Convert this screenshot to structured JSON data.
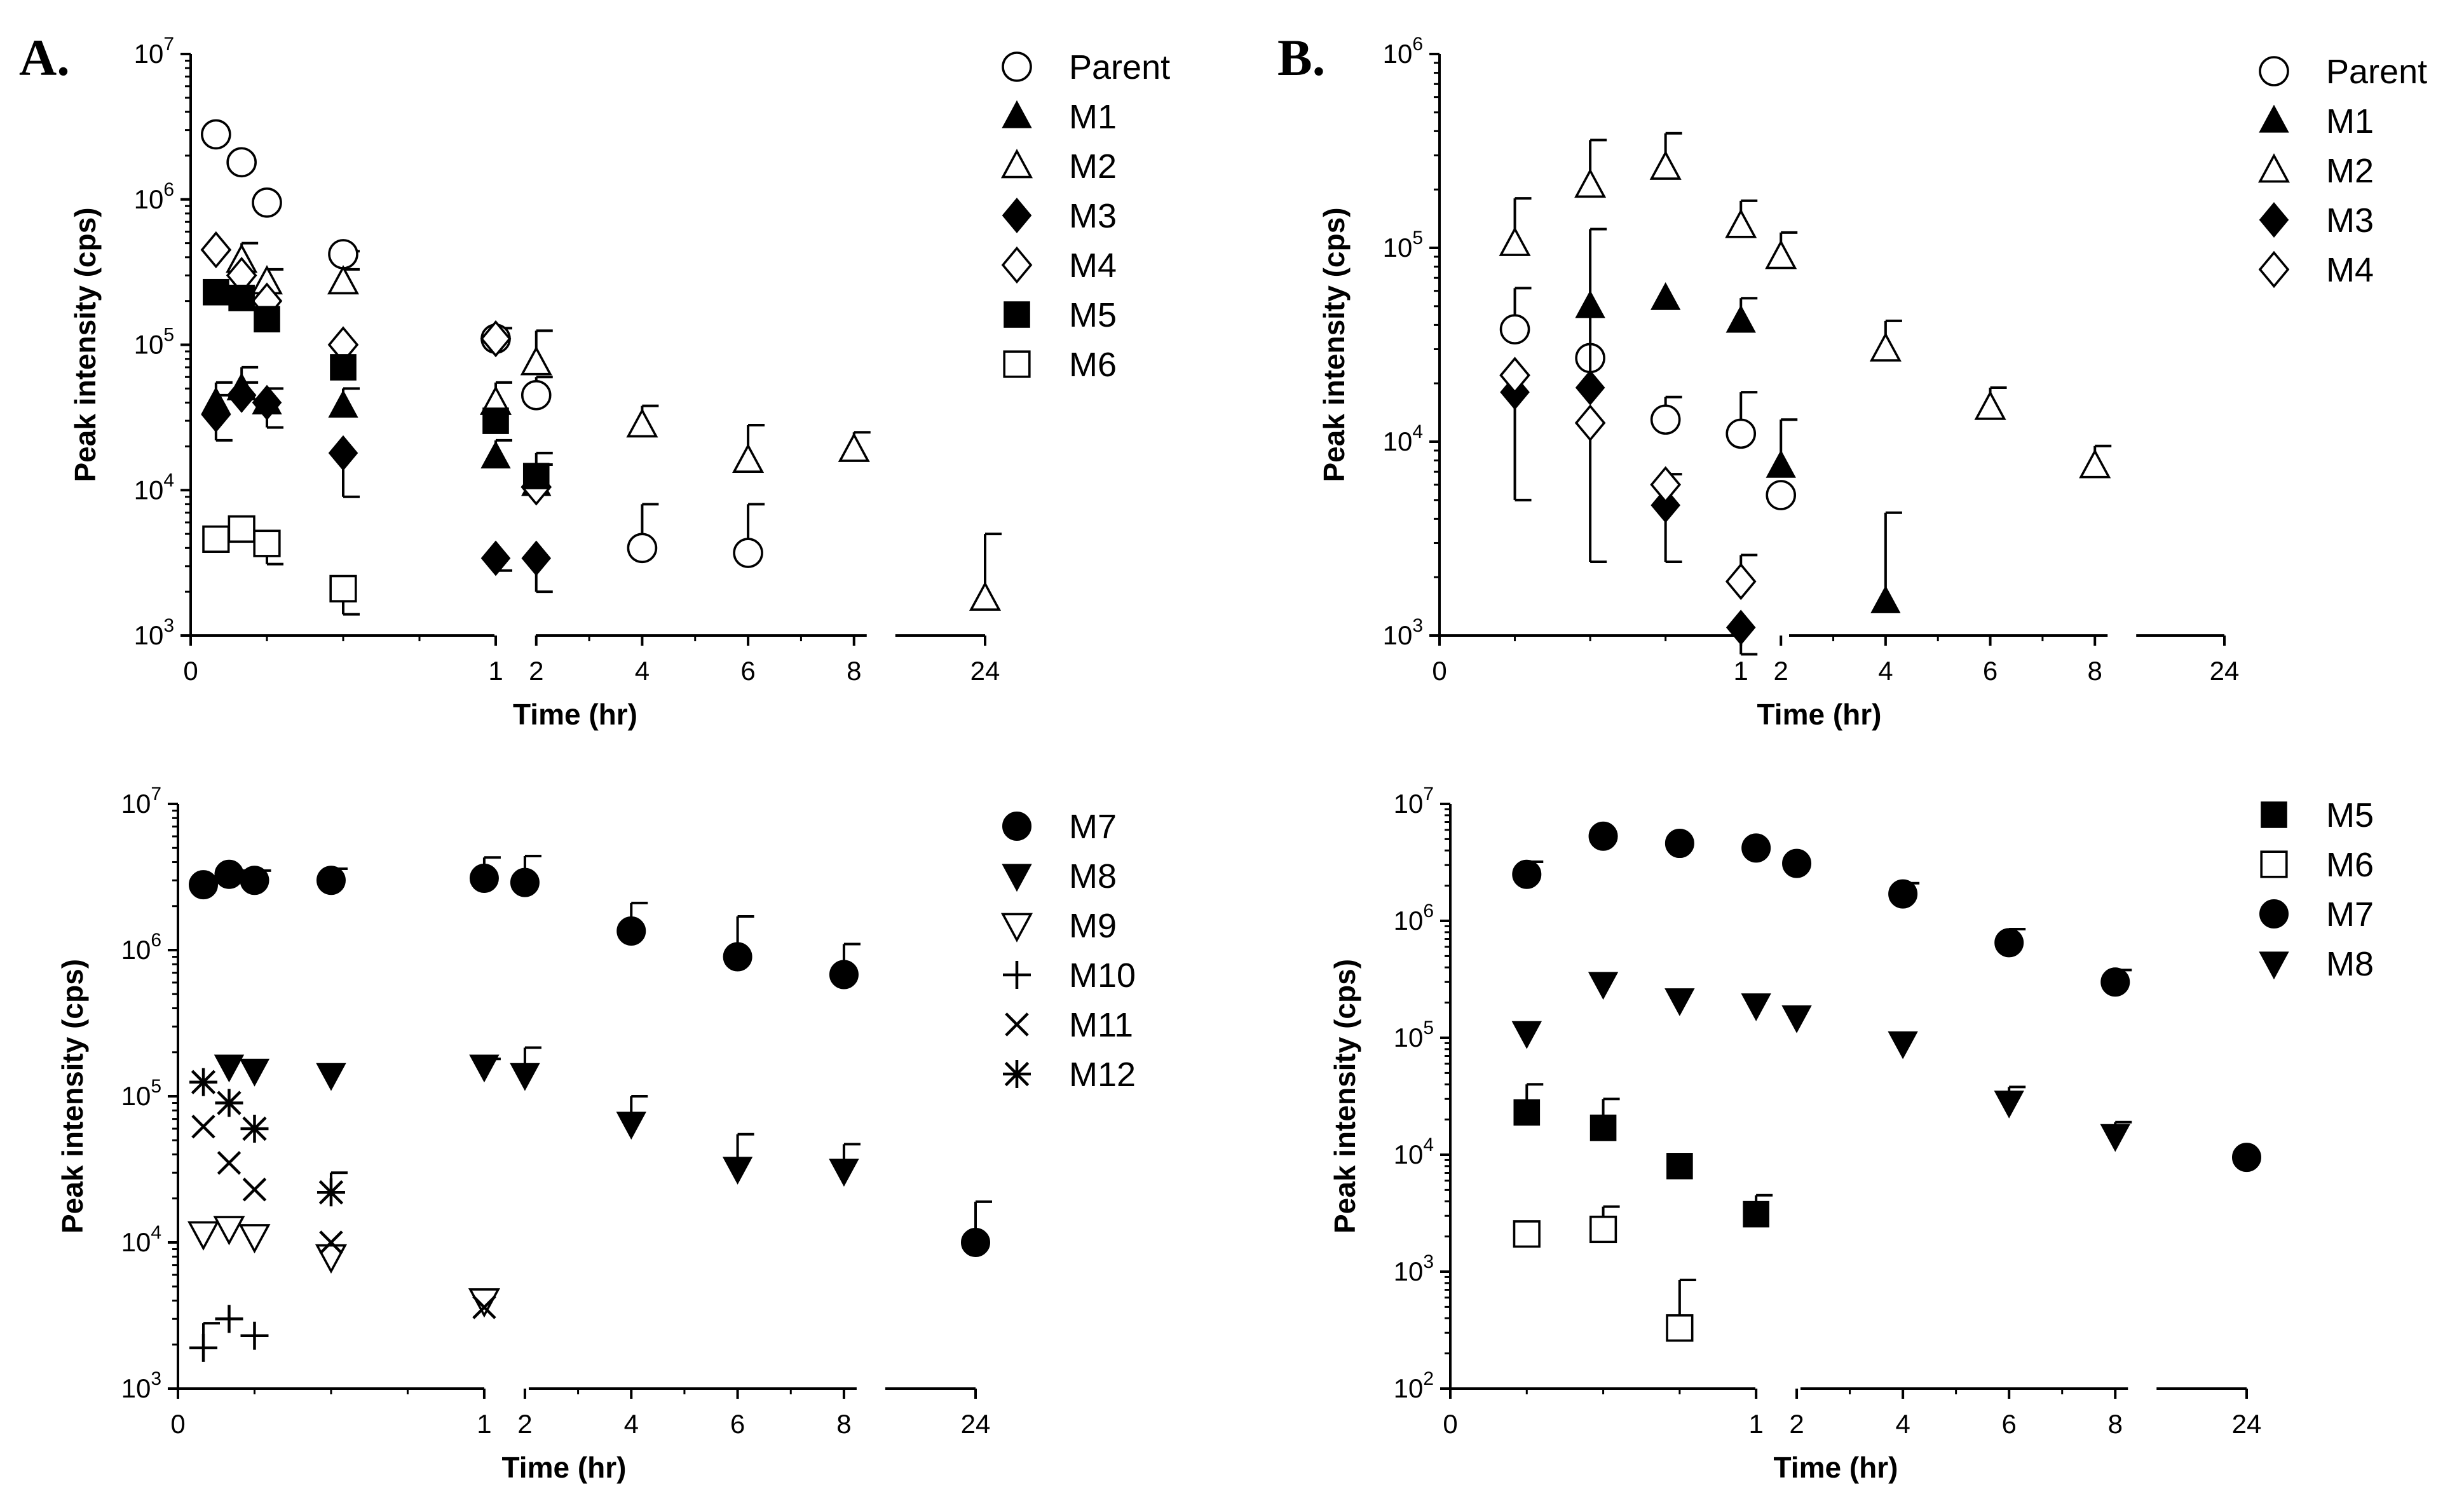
{
  "figure": {
    "panel_a": "A.",
    "panel_b": "B."
  },
  "chart_data": [
    {
      "id": "a-top",
      "type": "scatter",
      "xlabel": "Time (hr)",
      "ylabel": "Peak intensity (cps)",
      "yscale": "log",
      "ylim_exp": [
        3,
        7
      ],
      "y_base": "10",
      "x_ticks": [
        "0",
        "1",
        "2",
        "4",
        "6",
        "8",
        "24"
      ],
      "series": [
        {
          "name": "Parent",
          "marker": "circle-open",
          "points": [
            {
              "x": 0.083,
              "y": 2800000
            },
            {
              "x": 0.167,
              "y": 1800000
            },
            {
              "x": 0.25,
              "y": 950000
            },
            {
              "x": 0.5,
              "y": 420000,
              "err": 440000
            },
            {
              "x": 1,
              "y": 110000,
              "err": 130000
            },
            {
              "x": 2,
              "y": 45000,
              "err": 60000
            },
            {
              "x": 4,
              "y": 4000,
              "err": 8000
            },
            {
              "x": 6,
              "y": 3700,
              "err": 8000
            }
          ]
        },
        {
          "name": "M1",
          "marker": "triangle-filled",
          "points": [
            {
              "x": 0.083,
              "y": 40000,
              "err": 55000
            },
            {
              "x": 0.167,
              "y": 50000,
              "err": 70000
            },
            {
              "x": 0.25,
              "y": 40000,
              "err": 50000
            },
            {
              "x": 0.5,
              "y": 38000,
              "err": 50000
            },
            {
              "x": 1,
              "y": 17000,
              "err": 22000
            },
            {
              "x": 2,
              "y": 11000,
              "err": 15000
            }
          ]
        },
        {
          "name": "M2",
          "marker": "triangle-open",
          "points": [
            {
              "x": 0.167,
              "y": 380000,
              "err": 500000
            },
            {
              "x": 0.25,
              "y": 270000,
              "err": 330000
            },
            {
              "x": 0.5,
              "y": 270000,
              "err": 330000
            },
            {
              "x": 1,
              "y": 40000,
              "err": 55000
            },
            {
              "x": 2,
              "y": 75000,
              "err": 125000
            },
            {
              "x": 4,
              "y": 28000,
              "err": 38000
            },
            {
              "x": 6,
              "y": 16000,
              "err": 28000
            },
            {
              "x": 8,
              "y": 19000,
              "err": 25000
            },
            {
              "x": 24,
              "y": 1800,
              "err": 5000
            }
          ]
        },
        {
          "name": "M3",
          "marker": "diamond-filled",
          "points": [
            {
              "x": 0.083,
              "y": 33000,
              "err": 45000,
              "err_low": 22000
            },
            {
              "x": 0.167,
              "y": 45000,
              "err": 55000
            },
            {
              "x": 0.25,
              "y": 40000,
              "err_low": 27000
            },
            {
              "x": 0.5,
              "y": 18000,
              "err_low": 9000
            },
            {
              "x": 1,
              "y": 3400,
              "err_low": 2800
            },
            {
              "x": 2,
              "y": 3400,
              "err_low": 2000
            }
          ]
        },
        {
          "name": "M4",
          "marker": "diamond-open",
          "points": [
            {
              "x": 0.083,
              "y": 450000
            },
            {
              "x": 0.167,
              "y": 300000
            },
            {
              "x": 0.25,
              "y": 200000
            },
            {
              "x": 0.5,
              "y": 100000
            },
            {
              "x": 1,
              "y": 110000
            },
            {
              "x": 2,
              "y": 10500
            }
          ]
        },
        {
          "name": "M5",
          "marker": "square-filled",
          "points": [
            {
              "x": 0.083,
              "y": 230000
            },
            {
              "x": 0.167,
              "y": 210000
            },
            {
              "x": 0.25,
              "y": 150000
            },
            {
              "x": 0.5,
              "y": 70000
            },
            {
              "x": 1,
              "y": 30000
            },
            {
              "x": 2,
              "y": 12500,
              "err": 18000
            }
          ]
        },
        {
          "name": "M6",
          "marker": "square-open",
          "points": [
            {
              "x": 0.083,
              "y": 4600
            },
            {
              "x": 0.167,
              "y": 5400
            },
            {
              "x": 0.25,
              "y": 4300,
              "err_low": 3100
            },
            {
              "x": 0.5,
              "y": 2100,
              "err_low": 1400
            }
          ]
        }
      ]
    },
    {
      "id": "b-top",
      "type": "scatter",
      "xlabel": "Time (hr)",
      "ylabel": "Peak intensity (cps)",
      "yscale": "log",
      "ylim_exp": [
        3,
        6
      ],
      "y_base": "10",
      "x_ticks": [
        "0",
        "1",
        "2",
        "4",
        "6",
        "8",
        "24"
      ],
      "series": [
        {
          "name": "Parent",
          "marker": "circle-open",
          "points": [
            {
              "x": 0.25,
              "y": 38000,
              "err": 62000
            },
            {
              "x": 0.5,
              "y": 27000
            },
            {
              "x": 0.75,
              "y": 13000,
              "err": 17000
            },
            {
              "x": 1,
              "y": 11000,
              "err": 18000
            },
            {
              "x": 2,
              "y": 5300
            }
          ]
        },
        {
          "name": "M1",
          "marker": "triangle-filled",
          "points": [
            {
              "x": 0.5,
              "y": 50000
            },
            {
              "x": 0.75,
              "y": 55000
            },
            {
              "x": 1,
              "y": 42000,
              "err": 55000
            },
            {
              "x": 2,
              "y": 7500,
              "err": 13000
            },
            {
              "x": 4,
              "y": 1500,
              "err": 4300
            }
          ]
        },
        {
          "name": "M2",
          "marker": "triangle-open",
          "points": [
            {
              "x": 0.25,
              "y": 105000,
              "err": 180000
            },
            {
              "x": 0.5,
              "y": 210000,
              "err": 360000
            },
            {
              "x": 0.75,
              "y": 260000,
              "err": 390000
            },
            {
              "x": 1,
              "y": 130000,
              "err": 175000
            },
            {
              "x": 2,
              "y": 90000,
              "err": 120000
            },
            {
              "x": 4,
              "y": 30000,
              "err": 42000
            },
            {
              "x": 6,
              "y": 15000,
              "err": 19000
            },
            {
              "x": 8,
              "y": 7500,
              "err": 9500
            }
          ]
        },
        {
          "name": "M3",
          "marker": "diamond-filled",
          "points": [
            {
              "x": 0.25,
              "y": 18000,
              "err_low": 5000
            },
            {
              "x": 0.5,
              "y": 19000,
              "err": 125000
            },
            {
              "x": 0.75,
              "y": 4700,
              "err_low": 2400
            },
            {
              "x": 1,
              "y": 1100,
              "err_low": 800
            }
          ]
        },
        {
          "name": "M4",
          "marker": "diamond-open",
          "points": [
            {
              "x": 0.25,
              "y": 22000
            },
            {
              "x": 0.5,
              "y": 12500,
              "err_low": 2400
            },
            {
              "x": 0.75,
              "y": 6000,
              "err": 6800
            },
            {
              "x": 1,
              "y": 1900,
              "err": 2600
            }
          ]
        }
      ]
    },
    {
      "id": "a-bottom",
      "type": "scatter",
      "xlabel": "Time (hr)",
      "ylabel": "Peak intensity (cps)",
      "yscale": "log",
      "ylim_exp": [
        3,
        7
      ],
      "y_base": "10",
      "x_ticks": [
        "0",
        "1",
        "2",
        "4",
        "6",
        "8",
        "24"
      ],
      "series": [
        {
          "name": "M7",
          "marker": "circle-filled",
          "points": [
            {
              "x": 0.083,
              "y": 2800000
            },
            {
              "x": 0.167,
              "y": 3300000,
              "err": 3500000
            },
            {
              "x": 0.25,
              "y": 3000000,
              "err": 3500000
            },
            {
              "x": 0.5,
              "y": 3000000,
              "err": 3600000
            },
            {
              "x": 1,
              "y": 3100000,
              "err": 4300000
            },
            {
              "x": 2,
              "y": 2900000,
              "err": 4400000
            },
            {
              "x": 4,
              "y": 1350000,
              "err": 2100000
            },
            {
              "x": 6,
              "y": 900000,
              "err": 1700000
            },
            {
              "x": 8,
              "y": 680000,
              "err": 1100000
            },
            {
              "x": 24,
              "y": 10000,
              "err": 19000
            }
          ]
        },
        {
          "name": "M8",
          "marker": "triangle-down-filled",
          "points": [
            {
              "x": 0.167,
              "y": 160000
            },
            {
              "x": 0.25,
              "y": 150000
            },
            {
              "x": 0.5,
              "y": 140000
            },
            {
              "x": 1,
              "y": 160000,
              "err": 180000
            },
            {
              "x": 2,
              "y": 140000,
              "err": 215000
            },
            {
              "x": 4,
              "y": 65000,
              "err": 100000
            },
            {
              "x": 6,
              "y": 32000,
              "err": 55000
            },
            {
              "x": 8,
              "y": 31000,
              "err": 47000
            }
          ]
        },
        {
          "name": "M9",
          "marker": "triangle-down-open",
          "points": [
            {
              "x": 0.083,
              "y": 11500
            },
            {
              "x": 0.167,
              "y": 12500
            },
            {
              "x": 0.25,
              "y": 11000
            },
            {
              "x": 0.5,
              "y": 8000
            },
            {
              "x": 1,
              "y": 4000
            }
          ]
        },
        {
          "name": "M10",
          "marker": "plus",
          "points": [
            {
              "x": 0.083,
              "y": 1900,
              "err": 2800
            },
            {
              "x": 0.167,
              "y": 3000
            },
            {
              "x": 0.25,
              "y": 2300
            }
          ]
        },
        {
          "name": "M11",
          "marker": "cross",
          "points": [
            {
              "x": 0.083,
              "y": 62000
            },
            {
              "x": 0.167,
              "y": 35000
            },
            {
              "x": 0.25,
              "y": 23000
            },
            {
              "x": 0.5,
              "y": 10000
            },
            {
              "x": 1,
              "y": 3600
            }
          ]
        },
        {
          "name": "M12",
          "marker": "asterisk",
          "points": [
            {
              "x": 0.083,
              "y": 125000
            },
            {
              "x": 0.167,
              "y": 90000
            },
            {
              "x": 0.25,
              "y": 60000
            },
            {
              "x": 0.5,
              "y": 22000,
              "err": 30000
            }
          ]
        }
      ]
    },
    {
      "id": "b-bottom",
      "type": "scatter",
      "xlabel": "Time (hr)",
      "ylabel": "Peak intensity (cps)",
      "yscale": "log",
      "ylim_exp": [
        2,
        7
      ],
      "y_base": "10",
      "x_ticks": [
        "0",
        "1",
        "2",
        "4",
        "6",
        "8",
        "24"
      ],
      "series": [
        {
          "name": "M5",
          "marker": "square-filled",
          "points": [
            {
              "x": 0.25,
              "y": 23000,
              "err": 40000
            },
            {
              "x": 0.5,
              "y": 17000,
              "err": 30000
            },
            {
              "x": 0.75,
              "y": 8000
            },
            {
              "x": 1,
              "y": 3100,
              "err": 4500
            }
          ]
        },
        {
          "name": "M6",
          "marker": "square-open",
          "points": [
            {
              "x": 0.25,
              "y": 2100
            },
            {
              "x": 0.5,
              "y": 2300,
              "err": 3600
            },
            {
              "x": 0.75,
              "y": 330,
              "err": 850
            }
          ]
        },
        {
          "name": "M7",
          "marker": "circle-filled",
          "points": [
            {
              "x": 0.25,
              "y": 2500000,
              "err": 3200000
            },
            {
              "x": 0.5,
              "y": 5300000
            },
            {
              "x": 0.75,
              "y": 4600000
            },
            {
              "x": 1,
              "y": 4200000
            },
            {
              "x": 2,
              "y": 3100000
            },
            {
              "x": 4,
              "y": 1700000,
              "err": 2100000
            },
            {
              "x": 6,
              "y": 650000,
              "err": 850000
            },
            {
              "x": 8,
              "y": 300000,
              "err": 380000
            },
            {
              "x": 24,
              "y": 9500
            }
          ]
        },
        {
          "name": "M8",
          "marker": "triangle-down-filled",
          "points": [
            {
              "x": 0.25,
              "y": 110000
            },
            {
              "x": 0.5,
              "y": 290000
            },
            {
              "x": 0.75,
              "y": 210000
            },
            {
              "x": 1,
              "y": 190000
            },
            {
              "x": 2,
              "y": 150000
            },
            {
              "x": 4,
              "y": 90000
            },
            {
              "x": 6,
              "y": 28000,
              "err": 38000
            },
            {
              "x": 8,
              "y": 14500,
              "err": 19000
            }
          ]
        }
      ]
    }
  ]
}
